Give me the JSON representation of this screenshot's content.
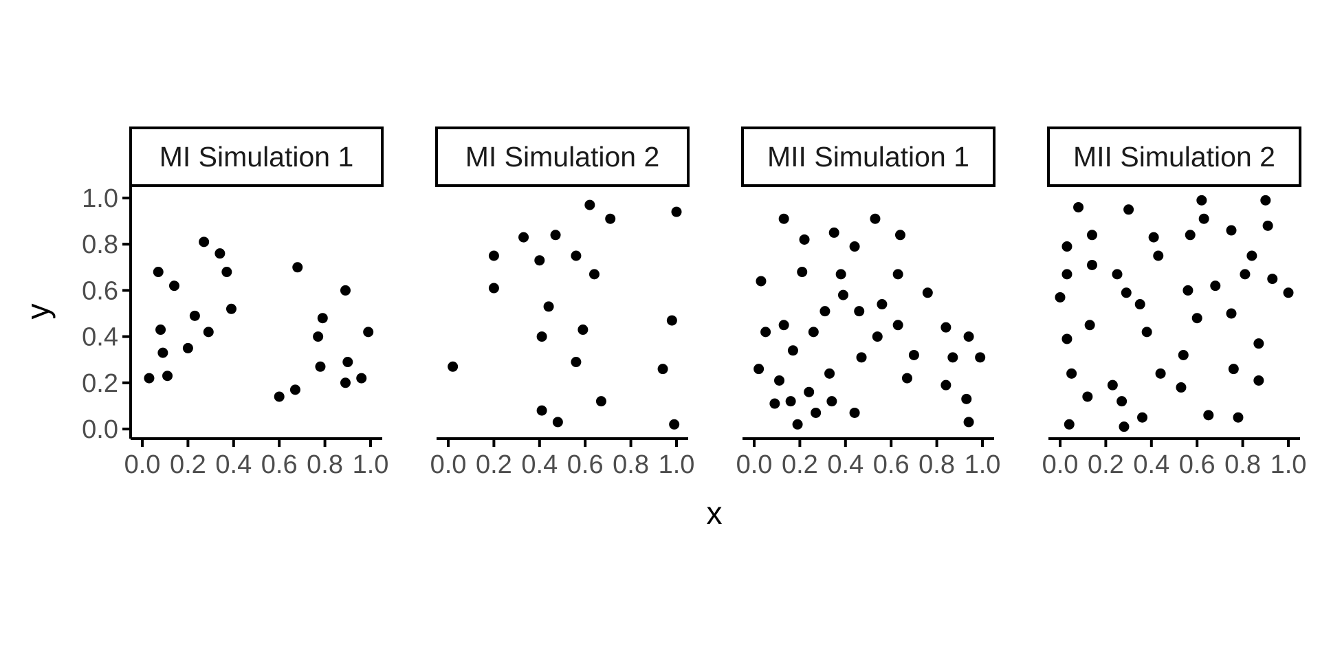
{
  "chart_data": {
    "type": "scatter",
    "xlabel": "x",
    "ylabel": "y",
    "xlim": [
      0,
      1
    ],
    "ylim": [
      0,
      1
    ],
    "x_ticks": [
      "0.0",
      "0.2",
      "0.4",
      "0.6",
      "0.8",
      "1.0"
    ],
    "y_ticks": [
      "0.0",
      "0.2",
      "0.4",
      "0.6",
      "0.8",
      "1.0"
    ],
    "grid": false,
    "point_color": "#000000",
    "panels": [
      {
        "title": "MI Simulation 1",
        "points": [
          [
            0.03,
            0.22
          ],
          [
            0.07,
            0.68
          ],
          [
            0.08,
            0.43
          ],
          [
            0.09,
            0.33
          ],
          [
            0.11,
            0.23
          ],
          [
            0.14,
            0.62
          ],
          [
            0.2,
            0.35
          ],
          [
            0.23,
            0.49
          ],
          [
            0.27,
            0.81
          ],
          [
            0.29,
            0.42
          ],
          [
            0.34,
            0.76
          ],
          [
            0.37,
            0.68
          ],
          [
            0.39,
            0.52
          ],
          [
            0.6,
            0.14
          ],
          [
            0.67,
            0.17
          ],
          [
            0.68,
            0.7
          ],
          [
            0.77,
            0.4
          ],
          [
            0.78,
            0.27
          ],
          [
            0.79,
            0.48
          ],
          [
            0.89,
            0.2
          ],
          [
            0.89,
            0.6
          ],
          [
            0.9,
            0.29
          ],
          [
            0.96,
            0.22
          ],
          [
            0.99,
            0.42
          ]
        ]
      },
      {
        "title": "MI Simulation 2",
        "points": [
          [
            0.02,
            0.27
          ],
          [
            0.2,
            0.75
          ],
          [
            0.2,
            0.61
          ],
          [
            0.33,
            0.83
          ],
          [
            0.4,
            0.73
          ],
          [
            0.41,
            0.4
          ],
          [
            0.41,
            0.08
          ],
          [
            0.44,
            0.53
          ],
          [
            0.47,
            0.84
          ],
          [
            0.48,
            0.03
          ],
          [
            0.56,
            0.75
          ],
          [
            0.56,
            0.29
          ],
          [
            0.59,
            0.43
          ],
          [
            0.62,
            0.97
          ],
          [
            0.64,
            0.67
          ],
          [
            0.67,
            0.12
          ],
          [
            0.71,
            0.91
          ],
          [
            0.94,
            0.26
          ],
          [
            0.98,
            0.47
          ],
          [
            0.99,
            0.02
          ],
          [
            1.0,
            0.94
          ]
        ]
      },
      {
        "title": "MII Simulation 1",
        "points": [
          [
            0.02,
            0.26
          ],
          [
            0.03,
            0.64
          ],
          [
            0.05,
            0.42
          ],
          [
            0.09,
            0.11
          ],
          [
            0.11,
            0.21
          ],
          [
            0.13,
            0.45
          ],
          [
            0.13,
            0.91
          ],
          [
            0.16,
            0.12
          ],
          [
            0.17,
            0.34
          ],
          [
            0.19,
            0.02
          ],
          [
            0.21,
            0.68
          ],
          [
            0.22,
            0.82
          ],
          [
            0.24,
            0.16
          ],
          [
            0.26,
            0.42
          ],
          [
            0.27,
            0.07
          ],
          [
            0.31,
            0.51
          ],
          [
            0.33,
            0.24
          ],
          [
            0.34,
            0.12
          ],
          [
            0.35,
            0.85
          ],
          [
            0.38,
            0.67
          ],
          [
            0.39,
            0.58
          ],
          [
            0.44,
            0.79
          ],
          [
            0.44,
            0.07
          ],
          [
            0.46,
            0.51
          ],
          [
            0.47,
            0.31
          ],
          [
            0.53,
            0.91
          ],
          [
            0.54,
            0.4
          ],
          [
            0.56,
            0.54
          ],
          [
            0.63,
            0.67
          ],
          [
            0.63,
            0.45
          ],
          [
            0.64,
            0.84
          ],
          [
            0.67,
            0.22
          ],
          [
            0.7,
            0.32
          ],
          [
            0.76,
            0.59
          ],
          [
            0.84,
            0.44
          ],
          [
            0.84,
            0.19
          ],
          [
            0.87,
            0.31
          ],
          [
            0.93,
            0.13
          ],
          [
            0.94,
            0.4
          ],
          [
            0.94,
            0.03
          ],
          [
            0.99,
            0.31
          ]
        ]
      },
      {
        "title": "MII Simulation 2",
        "points": [
          [
            0.0,
            0.57
          ],
          [
            0.03,
            0.79
          ],
          [
            0.03,
            0.67
          ],
          [
            0.03,
            0.39
          ],
          [
            0.04,
            0.02
          ],
          [
            0.05,
            0.24
          ],
          [
            0.08,
            0.96
          ],
          [
            0.12,
            0.14
          ],
          [
            0.13,
            0.45
          ],
          [
            0.14,
            0.71
          ],
          [
            0.14,
            0.84
          ],
          [
            0.23,
            0.19
          ],
          [
            0.25,
            0.67
          ],
          [
            0.27,
            0.12
          ],
          [
            0.28,
            0.01
          ],
          [
            0.29,
            0.59
          ],
          [
            0.3,
            0.95
          ],
          [
            0.35,
            0.54
          ],
          [
            0.36,
            0.05
          ],
          [
            0.38,
            0.42
          ],
          [
            0.41,
            0.83
          ],
          [
            0.43,
            0.75
          ],
          [
            0.44,
            0.24
          ],
          [
            0.53,
            0.18
          ],
          [
            0.54,
            0.32
          ],
          [
            0.56,
            0.6
          ],
          [
            0.57,
            0.84
          ],
          [
            0.6,
            0.48
          ],
          [
            0.62,
            0.99
          ],
          [
            0.63,
            0.91
          ],
          [
            0.65,
            0.06
          ],
          [
            0.68,
            0.62
          ],
          [
            0.75,
            0.86
          ],
          [
            0.75,
            0.5
          ],
          [
            0.76,
            0.26
          ],
          [
            0.78,
            0.05
          ],
          [
            0.81,
            0.67
          ],
          [
            0.84,
            0.75
          ],
          [
            0.87,
            0.21
          ],
          [
            0.87,
            0.37
          ],
          [
            0.9,
            0.99
          ],
          [
            0.91,
            0.88
          ],
          [
            0.93,
            0.65
          ],
          [
            1.0,
            0.59
          ]
        ]
      }
    ]
  }
}
